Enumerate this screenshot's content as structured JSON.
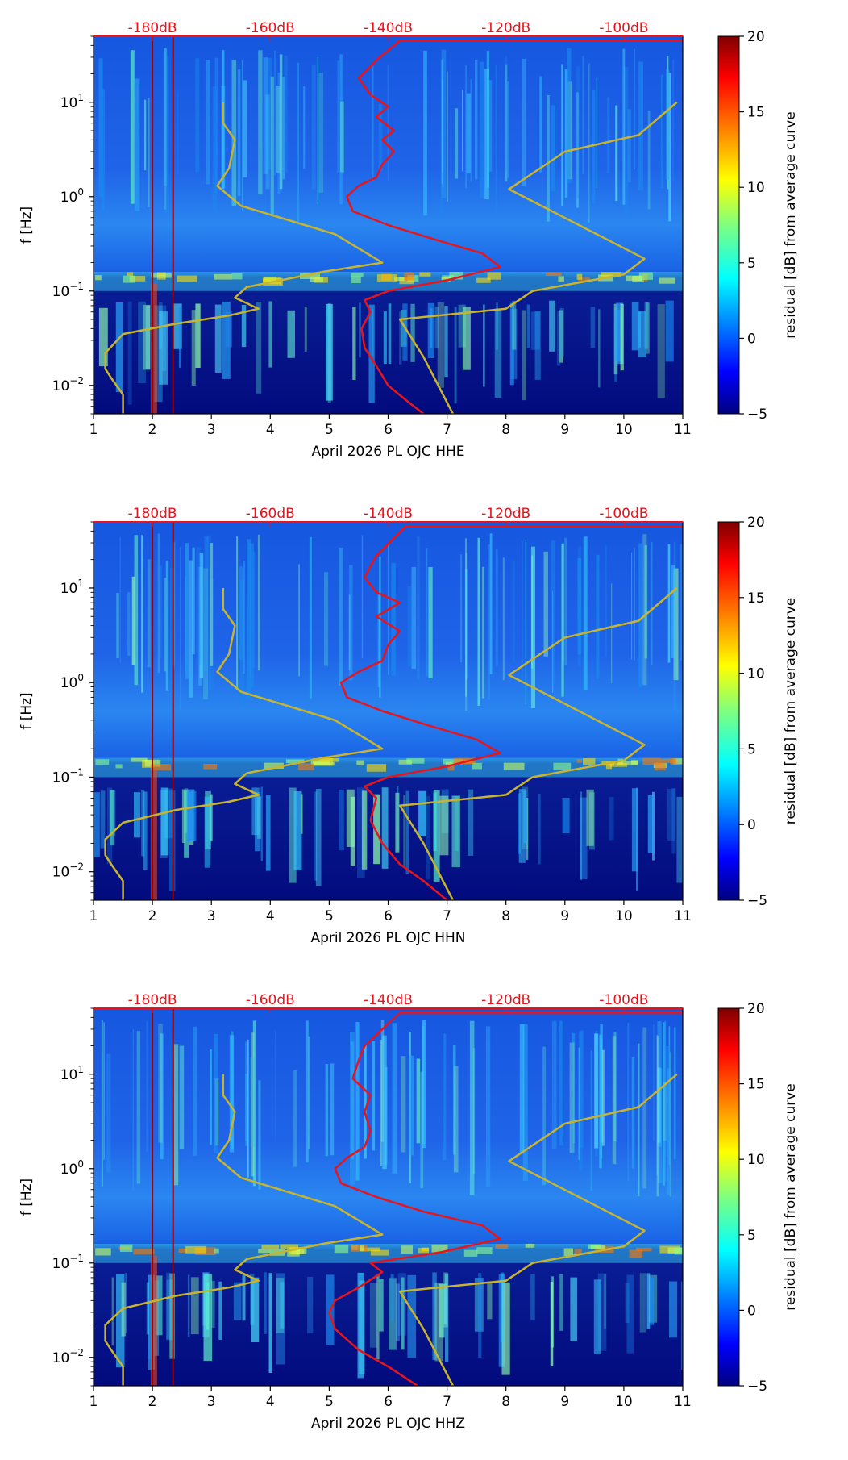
{
  "chart_data": [
    {
      "type": "heatmap",
      "xlabel": "April 2026 PL OJC  HHE",
      "ylabel": "f [Hz]",
      "xlim": [
        1,
        11
      ],
      "x_ticks": [
        "1",
        "2",
        "3",
        "4",
        "5",
        "6",
        "7",
        "8",
        "9",
        "10",
        "11"
      ],
      "y_scale": "log",
      "ylim": [
        0.005,
        50
      ],
      "y_ticks": [
        {
          "value": 0.01,
          "base": "10",
          "exp": "−2"
        },
        {
          "value": 0.1,
          "base": "10",
          "exp": "−1"
        },
        {
          "value": 1,
          "base": "10",
          "exp": "0"
        },
        {
          "value": 10,
          "base": "10",
          "exp": "1"
        }
      ],
      "top_ticks": [
        {
          "x": 2.0,
          "label": "-180dB"
        },
        {
          "x": 4.0,
          "label": "-160dB"
        },
        {
          "x": 6.0,
          "label": "-140dB"
        },
        {
          "x": 8.0,
          "label": "-120dB"
        },
        {
          "x": 10.0,
          "label": "-100dB"
        }
      ],
      "colorbar": {
        "label": "residual [dB] from average curve",
        "min": -5,
        "max": 20,
        "ticks": [
          "−5",
          "0",
          "5",
          "10",
          "15",
          "20"
        ]
      },
      "vertical_markers": [
        2.0,
        2.35
      ],
      "series": [
        {
          "color": "#e8141c",
          "points": [
            [
              6.6,
              0.005
            ],
            [
              6.3,
              0.007
            ],
            [
              6.0,
              0.01
            ],
            [
              5.8,
              0.016
            ],
            [
              5.6,
              0.025
            ],
            [
              5.55,
              0.04
            ],
            [
              5.7,
              0.06
            ],
            [
              5.6,
              0.08
            ],
            [
              6.0,
              0.1
            ],
            [
              7.0,
              0.13
            ],
            [
              7.9,
              0.18
            ],
            [
              7.6,
              0.25
            ],
            [
              6.8,
              0.35
            ],
            [
              6.0,
              0.5
            ],
            [
              5.4,
              0.7
            ],
            [
              5.3,
              1.0
            ],
            [
              5.5,
              1.3
            ],
            [
              5.8,
              1.6
            ],
            [
              5.9,
              2.2
            ],
            [
              6.1,
              3.0
            ],
            [
              5.9,
              4.0
            ],
            [
              6.1,
              5.0
            ],
            [
              5.8,
              7.0
            ],
            [
              6.0,
              9.0
            ],
            [
              5.7,
              12
            ],
            [
              5.5,
              18
            ],
            [
              5.8,
              28
            ],
            [
              6.2,
              45
            ],
            [
              11.0,
              45
            ]
          ]
        },
        {
          "color": "#c9b42d",
          "points": [
            [
              1.5,
              0.005
            ],
            [
              1.5,
              0.008
            ],
            [
              1.3,
              0.012
            ],
            [
              1.2,
              0.015
            ],
            [
              1.2,
              0.022
            ],
            [
              1.5,
              0.035
            ],
            [
              2.4,
              0.045
            ],
            [
              3.3,
              0.055
            ],
            [
              3.8,
              0.065
            ],
            [
              3.4,
              0.085
            ],
            [
              3.6,
              0.11
            ],
            [
              4.9,
              0.16
            ],
            [
              5.9,
              0.2
            ],
            [
              5.1,
              0.4
            ],
            [
              3.5,
              0.8
            ],
            [
              3.1,
              1.3
            ],
            [
              3.3,
              2.0
            ],
            [
              3.4,
              4.0
            ],
            [
              3.2,
              6.0
            ],
            [
              3.2,
              10
            ]
          ]
        },
        {
          "color": "#c9b42d",
          "points": [
            [
              7.1,
              0.005
            ],
            [
              6.6,
              0.02
            ],
            [
              6.2,
              0.05
            ],
            [
              8.0,
              0.065
            ],
            [
              8.45,
              0.1
            ],
            [
              10.0,
              0.15
            ],
            [
              10.35,
              0.22
            ],
            [
              8.05,
              1.2
            ],
            [
              9.0,
              3.0
            ],
            [
              10.25,
              4.5
            ],
            [
              10.9,
              10
            ]
          ]
        }
      ]
    },
    {
      "type": "heatmap",
      "xlabel": "April 2026 PL OJC  HHN",
      "ylabel": "f [Hz]",
      "xlim": [
        1,
        11
      ],
      "x_ticks": [
        "1",
        "2",
        "3",
        "4",
        "5",
        "6",
        "7",
        "8",
        "9",
        "10",
        "11"
      ],
      "y_scale": "log",
      "ylim": [
        0.005,
        50
      ],
      "y_ticks": [
        {
          "value": 0.01,
          "base": "10",
          "exp": "−2"
        },
        {
          "value": 0.1,
          "base": "10",
          "exp": "−1"
        },
        {
          "value": 1,
          "base": "10",
          "exp": "0"
        },
        {
          "value": 10,
          "base": "10",
          "exp": "1"
        }
      ],
      "top_ticks": [
        {
          "x": 2.0,
          "label": "-180dB"
        },
        {
          "x": 4.0,
          "label": "-160dB"
        },
        {
          "x": 6.0,
          "label": "-140dB"
        },
        {
          "x": 8.0,
          "label": "-120dB"
        },
        {
          "x": 10.0,
          "label": "-100dB"
        }
      ],
      "colorbar": {
        "label": "residual [dB] from average curve",
        "min": -5,
        "max": 20,
        "ticks": [
          "−5",
          "0",
          "5",
          "10",
          "15",
          "20"
        ]
      },
      "vertical_markers": [
        2.0,
        2.35
      ],
      "series": [
        {
          "color": "#e8141c",
          "points": [
            [
              7.0,
              0.005
            ],
            [
              6.6,
              0.008
            ],
            [
              6.2,
              0.012
            ],
            [
              5.9,
              0.02
            ],
            [
              5.7,
              0.035
            ],
            [
              5.8,
              0.06
            ],
            [
              5.6,
              0.08
            ],
            [
              6.0,
              0.1
            ],
            [
              7.0,
              0.13
            ],
            [
              7.9,
              0.18
            ],
            [
              7.5,
              0.25
            ],
            [
              6.7,
              0.35
            ],
            [
              5.9,
              0.5
            ],
            [
              5.3,
              0.7
            ],
            [
              5.2,
              1.0
            ],
            [
              5.5,
              1.3
            ],
            [
              5.9,
              1.7
            ],
            [
              6.0,
              2.5
            ],
            [
              6.2,
              3.5
            ],
            [
              5.8,
              5.0
            ],
            [
              6.2,
              7.0
            ],
            [
              5.8,
              9.0
            ],
            [
              5.6,
              13
            ],
            [
              5.8,
              22
            ],
            [
              6.3,
              45
            ],
            [
              11.0,
              45
            ]
          ]
        },
        {
          "color": "#c9b42d",
          "points": [
            [
              1.5,
              0.005
            ],
            [
              1.5,
              0.008
            ],
            [
              1.3,
              0.012
            ],
            [
              1.2,
              0.015
            ],
            [
              1.2,
              0.022
            ],
            [
              1.5,
              0.033
            ],
            [
              2.4,
              0.045
            ],
            [
              3.3,
              0.055
            ],
            [
              3.8,
              0.065
            ],
            [
              3.4,
              0.085
            ],
            [
              3.6,
              0.11
            ],
            [
              4.9,
              0.16
            ],
            [
              5.9,
              0.2
            ],
            [
              5.1,
              0.4
            ],
            [
              3.5,
              0.8
            ],
            [
              3.1,
              1.3
            ],
            [
              3.3,
              2.0
            ],
            [
              3.4,
              4.0
            ],
            [
              3.2,
              6.0
            ],
            [
              3.2,
              10
            ]
          ]
        },
        {
          "color": "#c9b42d",
          "points": [
            [
              7.1,
              0.005
            ],
            [
              6.6,
              0.02
            ],
            [
              6.2,
              0.05
            ],
            [
              8.0,
              0.065
            ],
            [
              8.45,
              0.1
            ],
            [
              10.0,
              0.15
            ],
            [
              10.35,
              0.22
            ],
            [
              8.05,
              1.2
            ],
            [
              9.0,
              3.0
            ],
            [
              10.25,
              4.5
            ],
            [
              10.9,
              10
            ]
          ]
        }
      ]
    },
    {
      "type": "heatmap",
      "xlabel": "April 2026 PL OJC  HHZ",
      "ylabel": "f [Hz]",
      "xlim": [
        1,
        11
      ],
      "x_ticks": [
        "1",
        "2",
        "3",
        "4",
        "5",
        "6",
        "7",
        "8",
        "9",
        "10",
        "11"
      ],
      "y_scale": "log",
      "ylim": [
        0.005,
        50
      ],
      "y_ticks": [
        {
          "value": 0.01,
          "base": "10",
          "exp": "−2"
        },
        {
          "value": 0.1,
          "base": "10",
          "exp": "−1"
        },
        {
          "value": 1,
          "base": "10",
          "exp": "0"
        },
        {
          "value": 10,
          "base": "10",
          "exp": "1"
        }
      ],
      "top_ticks": [
        {
          "x": 2.0,
          "label": "-180dB"
        },
        {
          "x": 4.0,
          "label": "-160dB"
        },
        {
          "x": 6.0,
          "label": "-140dB"
        },
        {
          "x": 8.0,
          "label": "-120dB"
        },
        {
          "x": 10.0,
          "label": "-100dB"
        }
      ],
      "colorbar": {
        "label": "residual [dB] from average curve",
        "min": -5,
        "max": 20,
        "ticks": [
          "−5",
          "0",
          "5",
          "10",
          "15",
          "20"
        ]
      },
      "vertical_markers": [
        2.0,
        2.35
      ],
      "series": [
        {
          "color": "#e8141c",
          "points": [
            [
              6.5,
              0.005
            ],
            [
              6.0,
              0.008
            ],
            [
              5.5,
              0.012
            ],
            [
              5.1,
              0.02
            ],
            [
              5.0,
              0.03
            ],
            [
              5.1,
              0.04
            ],
            [
              5.5,
              0.055
            ],
            [
              5.9,
              0.08
            ],
            [
              5.7,
              0.1
            ],
            [
              6.9,
              0.13
            ],
            [
              7.9,
              0.18
            ],
            [
              7.6,
              0.25
            ],
            [
              6.6,
              0.35
            ],
            [
              5.8,
              0.5
            ],
            [
              5.2,
              0.7
            ],
            [
              5.1,
              1.0
            ],
            [
              5.3,
              1.3
            ],
            [
              5.6,
              1.7
            ],
            [
              5.7,
              2.5
            ],
            [
              5.6,
              4.0
            ],
            [
              5.7,
              6.0
            ],
            [
              5.4,
              9.0
            ],
            [
              5.5,
              14
            ],
            [
              5.6,
              20
            ],
            [
              6.2,
              45
            ],
            [
              11.0,
              45
            ]
          ]
        },
        {
          "color": "#c9b42d",
          "points": [
            [
              1.5,
              0.005
            ],
            [
              1.5,
              0.008
            ],
            [
              1.3,
              0.012
            ],
            [
              1.2,
              0.015
            ],
            [
              1.2,
              0.022
            ],
            [
              1.5,
              0.033
            ],
            [
              2.4,
              0.045
            ],
            [
              3.3,
              0.055
            ],
            [
              3.8,
              0.065
            ],
            [
              3.4,
              0.085
            ],
            [
              3.6,
              0.11
            ],
            [
              4.9,
              0.16
            ],
            [
              5.9,
              0.2
            ],
            [
              5.1,
              0.4
            ],
            [
              3.5,
              0.8
            ],
            [
              3.1,
              1.3
            ],
            [
              3.3,
              2.0
            ],
            [
              3.4,
              4.0
            ],
            [
              3.2,
              6.0
            ],
            [
              3.2,
              10
            ]
          ]
        },
        {
          "color": "#c9b42d",
          "points": [
            [
              7.1,
              0.005
            ],
            [
              6.6,
              0.02
            ],
            [
              6.2,
              0.05
            ],
            [
              8.0,
              0.065
            ],
            [
              8.45,
              0.1
            ],
            [
              10.0,
              0.15
            ],
            [
              10.35,
              0.22
            ],
            [
              8.05,
              1.2
            ],
            [
              9.0,
              3.0
            ],
            [
              10.25,
              4.5
            ],
            [
              10.9,
              10
            ]
          ]
        }
      ]
    }
  ]
}
